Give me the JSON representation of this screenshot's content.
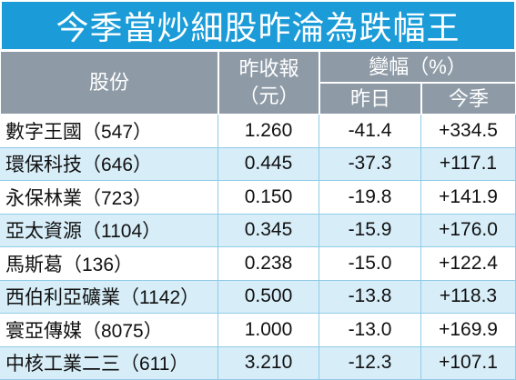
{
  "title": "今季當炒細股昨淪為跌幅王",
  "table": {
    "header": {
      "stock": "股份",
      "close": [
        "昨收報",
        "（元）"
      ],
      "change": "變幅（%）",
      "yesterday": "昨日",
      "quarter": "今季"
    },
    "rows": [
      [
        "數字王國（547）",
        "1.260",
        "-41.4",
        "+334.5"
      ],
      [
        "環保科技（646）",
        "0.445",
        "-37.3",
        "+117.1"
      ],
      [
        "永保林業（723）",
        "0.150",
        "-19.8",
        "+141.9"
      ],
      [
        "亞太資源（1104）",
        "0.345",
        "-15.9",
        "+176.0"
      ],
      [
        "馬斯葛（136）",
        "0.238",
        "-15.0",
        "+122.4"
      ],
      [
        "西伯利亞礦業（1142）",
        "0.500",
        "-13.8",
        "+118.3"
      ],
      [
        "寰亞傳媒（8075）",
        "1.000",
        "-13.0",
        "+169.9"
      ],
      [
        "中核工業二三（611）",
        "3.210",
        "-12.3",
        "+107.1"
      ]
    ]
  }
}
